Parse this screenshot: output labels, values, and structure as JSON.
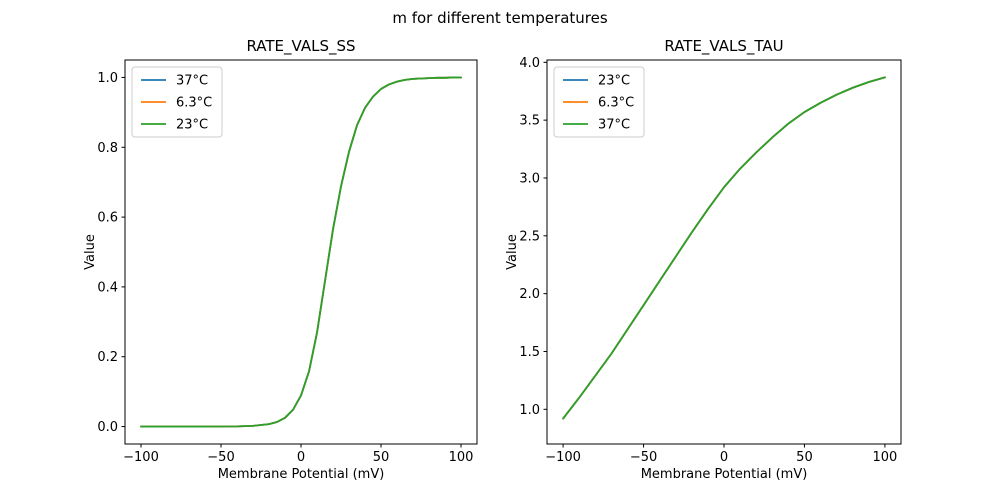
{
  "figure": {
    "suptitle": "m for different temperatures",
    "background_color": "#ffffff",
    "text_color": "#000000",
    "spine_color": "#000000",
    "legend_border_color": "#cccccc"
  },
  "chart_data": [
    {
      "type": "line",
      "title": "RATE_VALS_SS",
      "xlabel": "Membrane Potential (mV)",
      "ylabel": "Value",
      "grid": false,
      "legend_position": "upper left",
      "xlim": [
        -110,
        110
      ],
      "ylim": [
        -0.05,
        1.05
      ],
      "xticks": {
        "values": [
          -100,
          -50,
          0,
          50,
          100
        ],
        "labels": [
          "−100",
          "−50",
          "0",
          "50",
          "100"
        ]
      },
      "yticks": {
        "values": [
          0.0,
          0.2,
          0.4,
          0.6,
          0.8,
          1.0
        ],
        "labels": [
          "0.0",
          "0.2",
          "0.4",
          "0.6",
          "0.8",
          "1.0"
        ]
      },
      "x": [
        -100,
        -90,
        -80,
        -70,
        -60,
        -50,
        -40,
        -30,
        -20,
        -15,
        -10,
        -5,
        0,
        5,
        10,
        15,
        20,
        25,
        30,
        35,
        40,
        45,
        50,
        55,
        60,
        65,
        70,
        75,
        80,
        85,
        90,
        95,
        100
      ],
      "series": [
        {
          "name": "37°C",
          "color": "#1f77b4",
          "values": [
            0,
            0,
            0,
            0,
            0,
            0.0001,
            0.0005,
            0.002,
            0.007,
            0.013,
            0.025,
            0.048,
            0.089,
            0.158,
            0.269,
            0.417,
            0.565,
            0.688,
            0.787,
            0.863,
            0.913,
            0.945,
            0.967,
            0.98,
            0.988,
            0.993,
            0.996,
            0.997,
            0.998,
            0.999,
            0.999,
            1.0,
            1.0
          ]
        },
        {
          "name": "6.3°C",
          "color": "#ff7f0e",
          "values": [
            0,
            0,
            0,
            0,
            0,
            0.0001,
            0.0005,
            0.002,
            0.007,
            0.013,
            0.025,
            0.048,
            0.089,
            0.158,
            0.269,
            0.417,
            0.565,
            0.688,
            0.787,
            0.863,
            0.913,
            0.945,
            0.967,
            0.98,
            0.988,
            0.993,
            0.996,
            0.997,
            0.998,
            0.999,
            0.999,
            1.0,
            1.0
          ]
        },
        {
          "name": "23°C",
          "color": "#2ca02c",
          "values": [
            0,
            0,
            0,
            0,
            0,
            0.0001,
            0.0005,
            0.002,
            0.007,
            0.013,
            0.025,
            0.048,
            0.089,
            0.158,
            0.269,
            0.417,
            0.565,
            0.688,
            0.787,
            0.863,
            0.913,
            0.945,
            0.967,
            0.98,
            0.988,
            0.993,
            0.996,
            0.997,
            0.998,
            0.999,
            0.999,
            1.0,
            1.0
          ]
        }
      ]
    },
    {
      "type": "line",
      "title": "RATE_VALS_TAU",
      "xlabel": "Membrane Potential (mV)",
      "ylabel": "Value",
      "grid": false,
      "legend_position": "upper left",
      "xlim": [
        -110,
        110
      ],
      "ylim": [
        0.7,
        4.02
      ],
      "xticks": {
        "values": [
          -100,
          -50,
          0,
          50,
          100
        ],
        "labels": [
          "−100",
          "−50",
          "0",
          "50",
          "100"
        ]
      },
      "yticks": {
        "values": [
          1.0,
          1.5,
          2.0,
          2.5,
          3.0,
          3.5,
          4.0
        ],
        "labels": [
          "1.0",
          "1.5",
          "2.0",
          "2.5",
          "3.0",
          "3.5",
          "4.0"
        ]
      },
      "x": [
        -100,
        -90,
        -80,
        -70,
        -60,
        -50,
        -40,
        -30,
        -20,
        -10,
        0,
        10,
        20,
        30,
        40,
        50,
        60,
        70,
        80,
        90,
        100
      ],
      "series": [
        {
          "name": "23°C",
          "color": "#1f77b4",
          "values": [
            0.92,
            1.1,
            1.29,
            1.48,
            1.69,
            1.9,
            2.11,
            2.32,
            2.53,
            2.73,
            2.92,
            3.08,
            3.22,
            3.35,
            3.47,
            3.57,
            3.65,
            3.72,
            3.78,
            3.83,
            3.87
          ]
        },
        {
          "name": "6.3°C",
          "color": "#ff7f0e",
          "values": [
            0.92,
            1.1,
            1.29,
            1.48,
            1.69,
            1.9,
            2.11,
            2.32,
            2.53,
            2.73,
            2.92,
            3.08,
            3.22,
            3.35,
            3.47,
            3.57,
            3.65,
            3.72,
            3.78,
            3.83,
            3.87
          ]
        },
        {
          "name": "37°C",
          "color": "#2ca02c",
          "values": [
            0.92,
            1.1,
            1.29,
            1.48,
            1.69,
            1.9,
            2.11,
            2.32,
            2.53,
            2.73,
            2.92,
            3.08,
            3.22,
            3.35,
            3.47,
            3.57,
            3.65,
            3.72,
            3.78,
            3.83,
            3.87
          ]
        }
      ]
    }
  ]
}
